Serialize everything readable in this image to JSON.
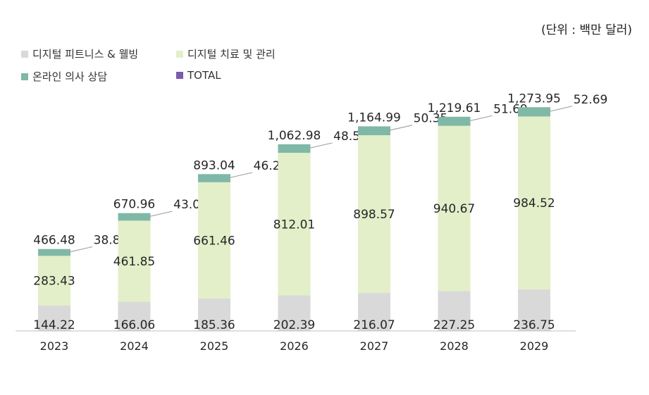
{
  "unit_note": "(단위 : 백만 달러)",
  "colors": {
    "fitness": "#d9d9d9",
    "therapy": "#e2efc9",
    "consult": "#7fb8a6",
    "total": "#7e5aab"
  },
  "chart_data": {
    "type": "bar",
    "categories": [
      "2023",
      "2024",
      "2025",
      "2026",
      "2027",
      "2028",
      "2029"
    ],
    "series": [
      {
        "key": "fitness",
        "name": "디지털 피트니스 & 웰빙",
        "values": [
          144.22,
          166.06,
          185.36,
          202.39,
          216.07,
          227.25,
          236.75
        ]
      },
      {
        "key": "therapy",
        "name": "디지털 치료 및 관리",
        "values": [
          283.43,
          461.85,
          661.46,
          812.01,
          898.57,
          940.67,
          984.52
        ]
      },
      {
        "key": "consult",
        "name": "온라인 의사 상담",
        "values": [
          38.84,
          43.05,
          46.21,
          48.58,
          50.35,
          51.69,
          52.69
        ]
      },
      {
        "key": "total",
        "name": "TOTAL",
        "values": [
          466.48,
          670.96,
          893.04,
          1062.98,
          1164.99,
          1219.61,
          1273.95
        ]
      }
    ],
    "total_labels": [
      "466.48",
      "670.96",
      "893.04",
      "1,062.98",
      "1,164.99",
      "1,219.61",
      "1,273.95"
    ],
    "fitness_labels": [
      "144.22",
      "166.06",
      "185.36",
      "202.39",
      "216.07",
      "227.25",
      "236.75"
    ],
    "therapy_labels": [
      "283.43",
      "461.85",
      "661.46",
      "812.01",
      "898.57",
      "940.67",
      "984.52"
    ],
    "consult_labels": [
      "38.84",
      "43.05",
      "46.21",
      "48.58",
      "50.35",
      "51.69",
      "52.69"
    ],
    "xlabel": "",
    "ylabel": "",
    "grid": false,
    "legend_position": "top-left"
  }
}
